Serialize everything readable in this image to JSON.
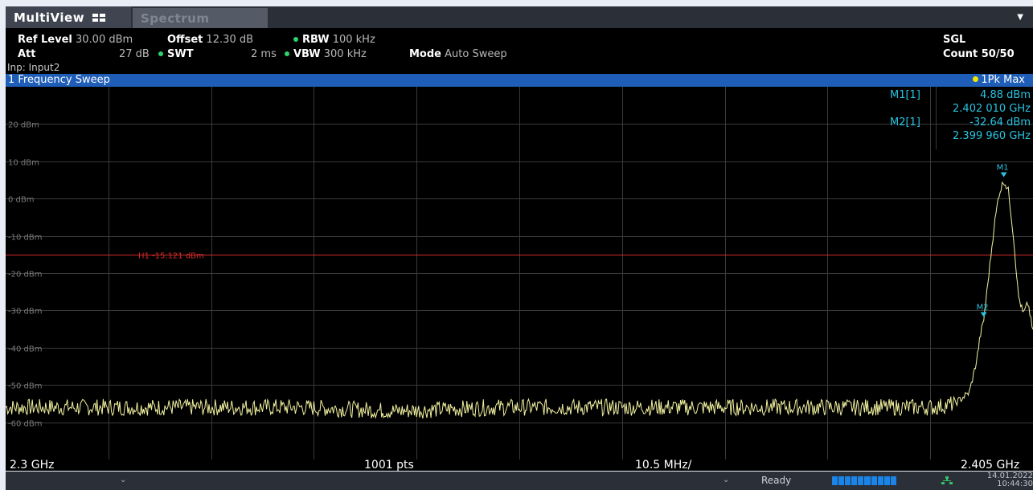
{
  "tabs": {
    "multiview": "MultiView",
    "spectrum": "Spectrum"
  },
  "settings": {
    "ref_level_label": "Ref Level",
    "ref_level_value": "30.00 dBm",
    "offset_label": "Offset",
    "offset_value": "12.30 dB",
    "rbw_label": "RBW",
    "rbw_value": "100 kHz",
    "att_label": "Att",
    "att_value": "27 dB",
    "swt_label": "SWT",
    "swt_value": "2 ms",
    "vbw_label": "VBW",
    "vbw_value": "300 kHz",
    "mode_label": "Mode",
    "mode_value": "Auto Sweep",
    "input": "Inp: Input2",
    "sgl": "SGL",
    "count": "Count 50/50"
  },
  "window": {
    "title": "1 Frequency Sweep",
    "trace_label": "1Pk Max"
  },
  "markers": {
    "m1_label": "M1[1]",
    "m1_level": "4.88 dBm",
    "m1_freq": "2.402 010 GHz",
    "m2_label": "M2[1]",
    "m2_level": "-32.64 dBm",
    "m2_freq": "2.399 960 GHz",
    "m1_tag": "M1",
    "m2_tag": "M2"
  },
  "hline": {
    "label": "H1 -15.121 dBm",
    "level_dbm": -15.121
  },
  "xaxis": {
    "start": "2.3 GHz",
    "points": "1001 pts",
    "span_per_div": "10.5 MHz/",
    "stop": "2.405 GHz"
  },
  "status": {
    "ready": "Ready",
    "date": "14.01.2022",
    "time": "10:44:30"
  },
  "chart_data": {
    "type": "line",
    "ylabel_ticks": [
      "20 dBm",
      "10 dBm",
      "0 dBm",
      "-10 dBm",
      "-20 dBm",
      "-30 dBm",
      "-40 dBm",
      "-50 dBm",
      "-60 dBm"
    ],
    "y_ticks": [
      20,
      10,
      0,
      -10,
      -20,
      -30,
      -40,
      -50,
      -60
    ],
    "ylim": [
      -70,
      30
    ],
    "xlim_ghz": [
      2.3,
      2.405
    ],
    "grid": true,
    "series": [
      {
        "color": "#f2f2a0",
        "x_ghz": [
          2.3,
          2.31,
          2.32,
          2.33,
          2.34,
          2.35,
          2.36,
          2.37,
          2.38,
          2.39,
          2.395,
          2.397,
          2.3985,
          2.3992,
          2.3996,
          2.39996,
          2.4005,
          2.401,
          2.4015,
          2.40201,
          2.4025,
          2.403,
          2.4035,
          2.404,
          2.4045,
          2.405
        ],
        "y_dbm": [
          -56,
          -56,
          -56,
          -56,
          -57,
          -56,
          -56,
          -56,
          -56,
          -56,
          -56,
          -55,
          -52,
          -44,
          -37,
          -32.64,
          -20,
          -8,
          1,
          4.88,
          2,
          -10,
          -26,
          -31,
          -28,
          -36
        ]
      }
    ]
  },
  "colors": {
    "background": "#000000",
    "title_bar": "#1f5eb8",
    "trace": "#f2f2a0",
    "hline": "#d42a2a",
    "marker": "#29c3e0"
  }
}
